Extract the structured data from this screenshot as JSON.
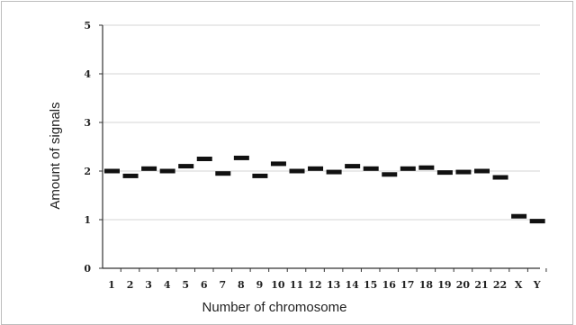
{
  "chart_data": {
    "type": "scatter",
    "marker": "horizontal-dash",
    "xlabel": "Number of chromosome",
    "ylabel": "Amount of signals",
    "categories": [
      "1",
      "2",
      "3",
      "4",
      "5",
      "6",
      "7",
      "8",
      "9",
      "10",
      "11",
      "12",
      "13",
      "14",
      "15",
      "16",
      "17",
      "18",
      "19",
      "20",
      "21",
      "22",
      "X",
      "Y"
    ],
    "values": [
      2.0,
      1.9,
      2.05,
      2.0,
      2.1,
      2.25,
      1.95,
      2.27,
      1.9,
      2.15,
      2.0,
      2.05,
      1.98,
      2.1,
      2.05,
      1.93,
      2.05,
      2.07,
      1.97,
      1.98,
      2.0,
      1.87,
      1.07,
      0.97
    ],
    "ylim": [
      0,
      5
    ],
    "yticks": [
      0,
      1,
      2,
      3,
      4,
      5
    ],
    "grid": true,
    "colors": {
      "marker": "#111111",
      "grid": "#d4d4d4",
      "axis": "#333333"
    }
  }
}
